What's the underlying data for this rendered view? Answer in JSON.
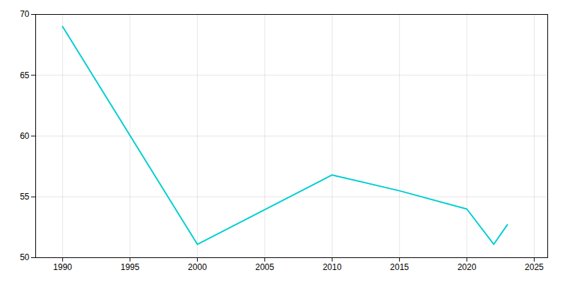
{
  "chart_data": {
    "type": "line",
    "x": [
      1990,
      2000,
      2010,
      2015,
      2020,
      2022,
      2023
    ],
    "values": [
      69.0,
      51.1,
      56.8,
      55.5,
      54.0,
      51.1,
      52.7
    ],
    "color": "#00CED1",
    "xlim": [
      1988,
      2026
    ],
    "ylim": [
      50,
      70
    ],
    "xticks": [
      1990,
      1995,
      2000,
      2005,
      2010,
      2015,
      2020,
      2025
    ],
    "yticks": [
      50,
      55,
      60,
      65,
      70
    ],
    "grid": true
  }
}
